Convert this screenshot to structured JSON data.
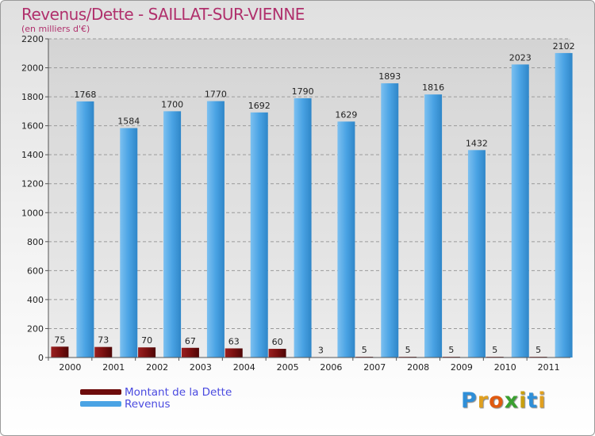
{
  "chart_data": {
    "type": "bar",
    "title": "Revenus/Dette - SAILLAT-SUR-VIENNE",
    "subtitle": "(en milliers d'€)",
    "xlabel": "",
    "ylabel": "",
    "ylim": [
      0,
      2200
    ],
    "yticks": [
      0,
      200,
      400,
      600,
      800,
      1000,
      1200,
      1400,
      1600,
      1800,
      2000,
      2200
    ],
    "grid": true,
    "legend_position": "bottom-left",
    "categories": [
      "2000",
      "2001",
      "2002",
      "2003",
      "2004",
      "2005",
      "2006",
      "2007",
      "2008",
      "2009",
      "2010",
      "2011"
    ],
    "series": [
      {
        "name": "Montant de la Dette",
        "color": "#6e0c0c",
        "values": [
          75,
          73,
          70,
          67,
          63,
          60,
          3,
          5,
          5,
          5,
          5,
          5
        ]
      },
      {
        "name": "Revenus",
        "color": "#4aa3e4",
        "values": [
          1768,
          1584,
          1700,
          1770,
          1692,
          1790,
          1629,
          1893,
          1816,
          1432,
          2023,
          2102
        ]
      }
    ]
  },
  "logo": {
    "letters": [
      "P",
      "r",
      "o",
      "x",
      "i",
      "t",
      "i"
    ],
    "colors": [
      "#2f8fd8",
      "#e0a020",
      "#e05a10",
      "#3aa030",
      "#c8a010",
      "#2f8fd8",
      "#e0a020"
    ]
  }
}
